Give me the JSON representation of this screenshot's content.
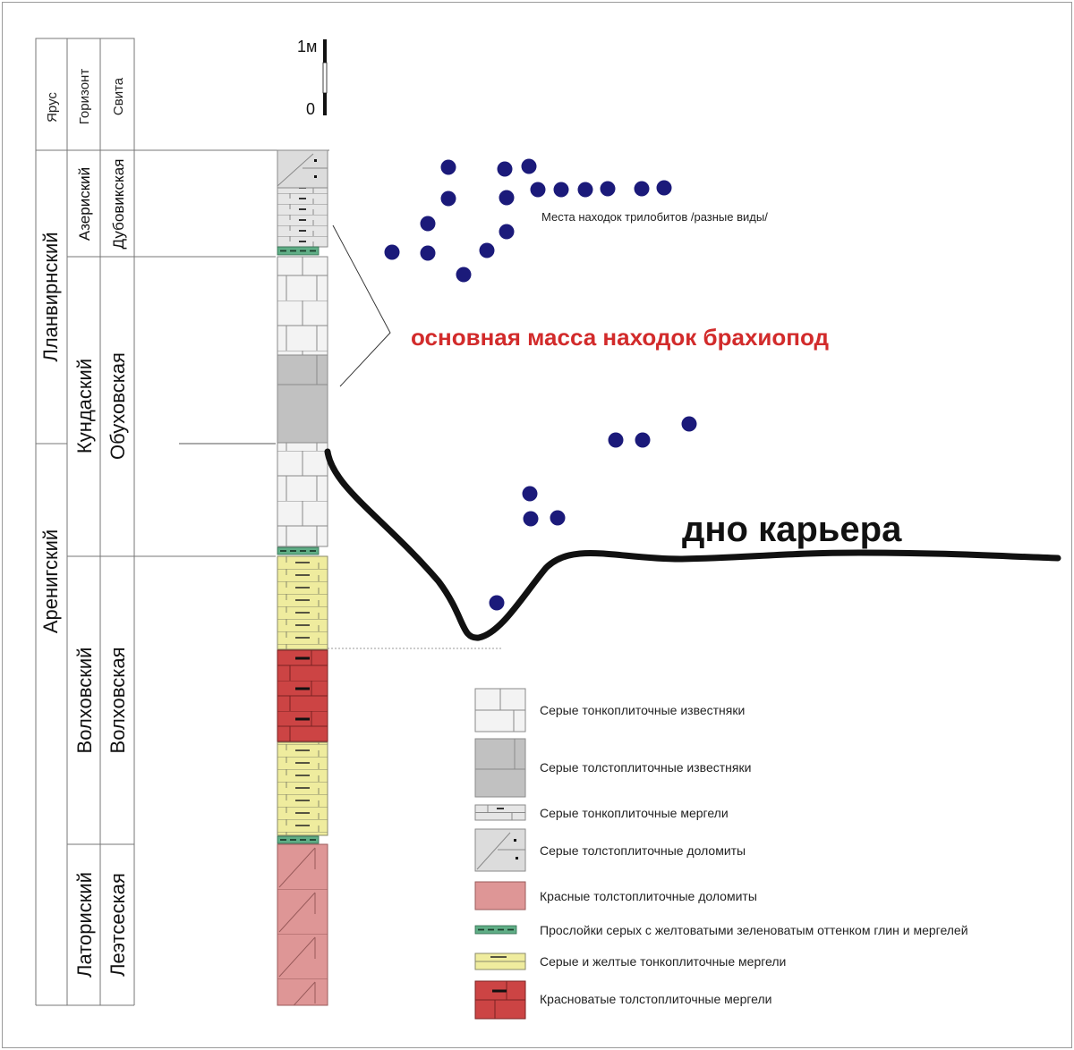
{
  "column_headers": {
    "stage": "Ярус",
    "horizon": "Горизонт",
    "suite": "Свита"
  },
  "stages": [
    "Лланвирнский",
    "Аренигский"
  ],
  "horizons": [
    "Азериский",
    "Кундаский",
    "Волховский",
    "Латориский"
  ],
  "suites": [
    "Дубовикская",
    "Обуховская",
    "Волховская",
    "Леэтсеская"
  ],
  "scale_bar": {
    "top_label": "1м",
    "bottom_label": "0"
  },
  "annotations": {
    "trilobites": "Места находок трилобитов /разные виды/",
    "brachiopods": "основная масса находок брахиопод",
    "quarry_bottom": "дно карьера"
  },
  "colors": {
    "brachiopods": "#d22b2b",
    "dots": "#1b1a7a",
    "thin_limestone": "#f3f3f3",
    "thick_limestone": "#c1c1c1",
    "grey_marl": "#e8e8e8",
    "grey_dolomite": "#dcdcdc",
    "red_dolomite": "#de9696",
    "clay_interlayer": "#5fae86",
    "yellow_marl": "#efec9e",
    "red_marl": "#cc4444"
  },
  "legend": [
    {
      "key": "thin-limestone",
      "label": "Серые тонкоплиточные известняки"
    },
    {
      "key": "thick-limestone",
      "label": "Серые толстоплиточные известняки"
    },
    {
      "key": "grey-marl",
      "label": "Серые тонкоплиточные мергели"
    },
    {
      "key": "grey-dolomite",
      "label": "Серые толстоплиточные доломиты"
    },
    {
      "key": "red-dolomite",
      "label": "Красные толстоплиточные доломиты"
    },
    {
      "key": "clay-interlayer",
      "label": "Прослойки серых с желтоватыми зеленоватым оттенком глин и мергелей"
    },
    {
      "key": "yellow-marl",
      "label": "Серые и желтые тонкоплиточные мергели"
    },
    {
      "key": "red-marl",
      "label": "Красноватые толстоплиточные мергели"
    }
  ]
}
